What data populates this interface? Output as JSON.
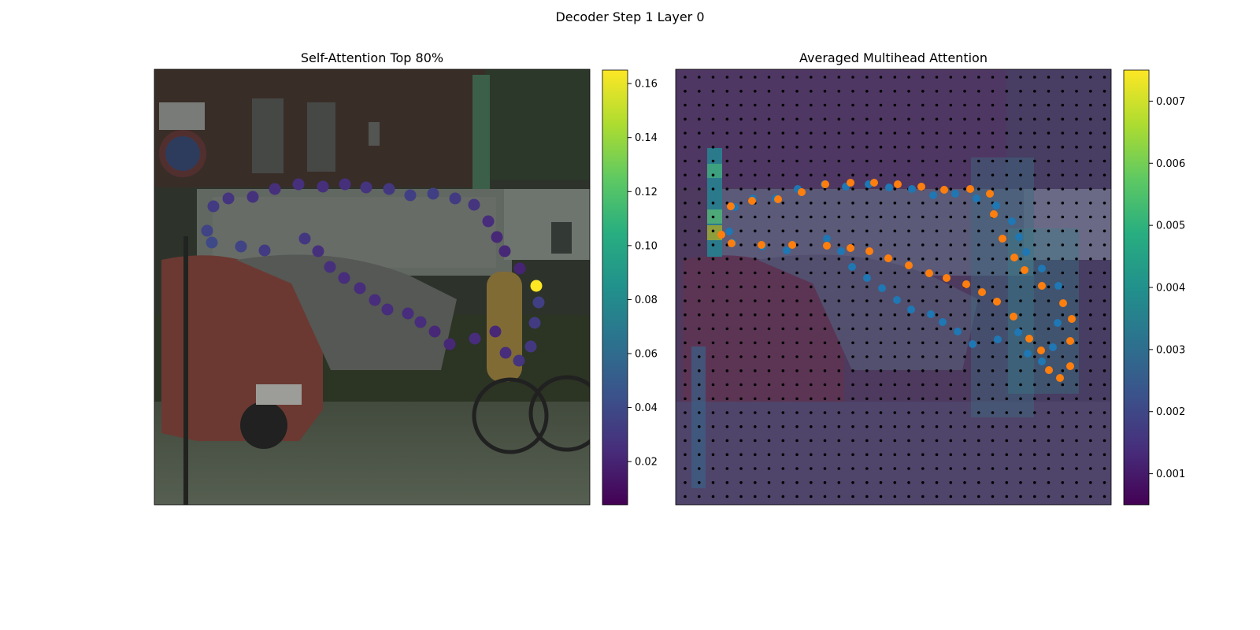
{
  "figure": {
    "suptitle": "Decoder Step 1 Layer 0"
  },
  "chart_data": [
    {
      "type": "scatter",
      "title": "Self-Attention Top 80%",
      "background": "street scene photograph (cars, building, bicycles)",
      "colormap": "viridis",
      "colorbar": {
        "range": [
          0.004,
          0.165
        ],
        "ticks": [
          0.02,
          0.04,
          0.06,
          0.08,
          0.1,
          0.12,
          0.14,
          0.16
        ],
        "tick_labels": [
          "0.02",
          "0.04",
          "0.06",
          "0.08",
          "0.10",
          "0.12",
          "0.14",
          "0.16"
        ]
      },
      "points": [
        {
          "x": 271,
          "y": 262,
          "v": 0.032
        },
        {
          "x": 290,
          "y": 252,
          "v": 0.028
        },
        {
          "x": 321,
          "y": 250,
          "v": 0.027
        },
        {
          "x": 349,
          "y": 240,
          "v": 0.026
        },
        {
          "x": 379,
          "y": 234,
          "v": 0.026
        },
        {
          "x": 410,
          "y": 237,
          "v": 0.026
        },
        {
          "x": 438,
          "y": 234,
          "v": 0.026
        },
        {
          "x": 465,
          "y": 238,
          "v": 0.028
        },
        {
          "x": 494,
          "y": 240,
          "v": 0.03
        },
        {
          "x": 521,
          "y": 248,
          "v": 0.034
        },
        {
          "x": 550,
          "y": 246,
          "v": 0.034
        },
        {
          "x": 578,
          "y": 252,
          "v": 0.032
        },
        {
          "x": 602,
          "y": 260,
          "v": 0.028
        },
        {
          "x": 620,
          "y": 281,
          "v": 0.024
        },
        {
          "x": 631,
          "y": 301,
          "v": 0.022
        },
        {
          "x": 641,
          "y": 319,
          "v": 0.022
        },
        {
          "x": 660,
          "y": 341,
          "v": 0.02
        },
        {
          "x": 681,
          "y": 363,
          "v": 0.165
        },
        {
          "x": 684,
          "y": 384,
          "v": 0.034
        },
        {
          "x": 679,
          "y": 410,
          "v": 0.032
        },
        {
          "x": 674,
          "y": 440,
          "v": 0.03
        },
        {
          "x": 659,
          "y": 458,
          "v": 0.028
        },
        {
          "x": 642,
          "y": 448,
          "v": 0.024
        },
        {
          "x": 629,
          "y": 421,
          "v": 0.022
        },
        {
          "x": 603,
          "y": 430,
          "v": 0.024
        },
        {
          "x": 571,
          "y": 437,
          "v": 0.022
        },
        {
          "x": 552,
          "y": 421,
          "v": 0.022
        },
        {
          "x": 534,
          "y": 409,
          "v": 0.024
        },
        {
          "x": 518,
          "y": 398,
          "v": 0.024
        },
        {
          "x": 492,
          "y": 393,
          "v": 0.024
        },
        {
          "x": 476,
          "y": 381,
          "v": 0.024
        },
        {
          "x": 457,
          "y": 366,
          "v": 0.024
        },
        {
          "x": 437,
          "y": 353,
          "v": 0.024
        },
        {
          "x": 419,
          "y": 339,
          "v": 0.026
        },
        {
          "x": 404,
          "y": 319,
          "v": 0.026
        },
        {
          "x": 387,
          "y": 303,
          "v": 0.03
        },
        {
          "x": 336,
          "y": 318,
          "v": 0.032
        },
        {
          "x": 306,
          "y": 313,
          "v": 0.036
        },
        {
          "x": 269,
          "y": 308,
          "v": 0.04
        },
        {
          "x": 263,
          "y": 293,
          "v": 0.036
        }
      ]
    },
    {
      "type": "heatmap",
      "title": "Averaged Multihead Attention",
      "background": "same street scene overlaid with attention heatmap and grid of black dots",
      "colormap": "viridis",
      "colorbar": {
        "range": [
          0.0005,
          0.0075
        ],
        "ticks": [
          0.001,
          0.002,
          0.003,
          0.004,
          0.005,
          0.006,
          0.007
        ],
        "tick_labels": [
          "0.001",
          "0.002",
          "0.003",
          "0.004",
          "0.005",
          "0.006",
          "0.007"
        ]
      },
      "series": [
        {
          "color": "#1f77b4",
          "points": [
            [
              933,
              263
            ],
            [
              956,
              252
            ],
            [
              985,
              252
            ],
            [
              1013,
              240
            ],
            [
              1047,
              234
            ],
            [
              1074,
              237
            ],
            [
              1103,
              234
            ],
            [
              1129,
              238
            ],
            [
              1158,
              240
            ],
            [
              1185,
              248
            ],
            [
              1213,
              246
            ],
            [
              1240,
              252
            ],
            [
              1265,
              261
            ],
            [
              1285,
              281
            ],
            [
              1294,
              301
            ],
            [
              1303,
              320
            ],
            [
              1323,
              341
            ],
            [
              1344,
              363
            ],
            [
              1343,
              410
            ],
            [
              1337,
              441
            ],
            [
              1323,
              459
            ],
            [
              1305,
              449
            ],
            [
              1293,
              422
            ],
            [
              1267,
              431
            ],
            [
              1235,
              437
            ],
            [
              1216,
              421
            ],
            [
              1197,
              409
            ],
            [
              1182,
              399
            ],
            [
              1157,
              393
            ],
            [
              1139,
              381
            ],
            [
              1120,
              366
            ],
            [
              1101,
              353
            ],
            [
              1082,
              339
            ],
            [
              1068,
              319
            ],
            [
              1050,
              303
            ],
            [
              999,
              318
            ],
            [
              968,
              313
            ],
            [
              930,
              308
            ],
            [
              926,
              294
            ]
          ]
        },
        {
          "color": "#ff7f0e",
          "points": [
            [
              928,
              262
            ],
            [
              955,
              255
            ],
            [
              988,
              253
            ],
            [
              1018,
              244
            ],
            [
              1048,
              234
            ],
            [
              1080,
              232
            ],
            [
              1110,
              232
            ],
            [
              1140,
              234
            ],
            [
              1170,
              237
            ],
            [
              1199,
              241
            ],
            [
              1232,
              240
            ],
            [
              1257,
              246
            ],
            [
              1262,
              272
            ],
            [
              1273,
              303
            ],
            [
              1288,
              327
            ],
            [
              1301,
              343
            ],
            [
              1323,
              363
            ],
            [
              1350,
              385
            ],
            [
              1361,
              405
            ],
            [
              1359,
              433
            ],
            [
              1359,
              465
            ],
            [
              1346,
              480
            ],
            [
              1332,
              470
            ],
            [
              1322,
              445
            ],
            [
              1307,
              430
            ],
            [
              1287,
              402
            ],
            [
              1266,
              383
            ],
            [
              1247,
              371
            ],
            [
              1227,
              361
            ],
            [
              1202,
              353
            ],
            [
              1180,
              347
            ],
            [
              1154,
              337
            ],
            [
              1128,
              328
            ],
            [
              1104,
              319
            ],
            [
              1080,
              315
            ],
            [
              1050,
              312
            ],
            [
              1006,
              311
            ],
            [
              967,
              311
            ],
            [
              929,
              309
            ],
            [
              916,
              298
            ]
          ]
        }
      ]
    }
  ]
}
